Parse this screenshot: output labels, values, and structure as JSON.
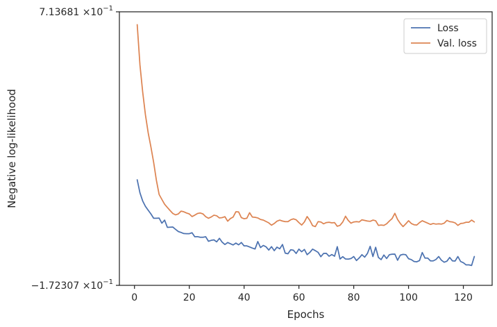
{
  "chart_data": {
    "type": "line",
    "xlabel": "Epochs",
    "ylabel": "Negative log-likelihood",
    "xlim": [
      -5.5,
      130.5
    ],
    "ylim": [
      -0.172307,
      0.713681
    ],
    "x_ticks": [
      0,
      20,
      40,
      60,
      80,
      100,
      120
    ],
    "x_tick_labels": [
      "0",
      "20",
      "40",
      "60",
      "80",
      "100",
      "120"
    ],
    "y_ticks": [
      -0.172307,
      0.713681
    ],
    "y_tick_labels": [
      {
        "prefix": "−1.72307",
        "exp": "−1"
      },
      {
        "prefix": "7.13681",
        "exp": "−1"
      }
    ],
    "y_tick_times": "×10",
    "legend_position": "top-right",
    "grid": false,
    "series": [
      {
        "name": "Loss",
        "color": "#4c72b0",
        "x": [
          1,
          2,
          3,
          4,
          5,
          6,
          7,
          8,
          9,
          10,
          11,
          12,
          13,
          14,
          15,
          16,
          17,
          18,
          19,
          20,
          21,
          22,
          23,
          24,
          25,
          26,
          27,
          28,
          29,
          30,
          31,
          32,
          33,
          34,
          35,
          36,
          37,
          38,
          39,
          40,
          41,
          42,
          43,
          44,
          45,
          46,
          47,
          48,
          49,
          50,
          51,
          52,
          53,
          54,
          55,
          56,
          57,
          58,
          59,
          60,
          61,
          62,
          63,
          64,
          65,
          66,
          67,
          68,
          69,
          70,
          71,
          72,
          73,
          74,
          75,
          76,
          77,
          78,
          79,
          80,
          81,
          82,
          83,
          84,
          85,
          86,
          87,
          88,
          89,
          90,
          91,
          92,
          93,
          94,
          95,
          96,
          97,
          98,
          99,
          100,
          101,
          102,
          103,
          104,
          105,
          106,
          107,
          108,
          109,
          110,
          111,
          112,
          113,
          114,
          115,
          116,
          117,
          118,
          119,
          120,
          121,
          122,
          123,
          124
        ],
        "values": [
          0.1695,
          0.1275,
          0.101,
          0.0835,
          0.071,
          0.059,
          0.045,
          0.045,
          0.0455,
          0.029,
          0.039,
          0.0155,
          0.016,
          0.0165,
          0.009,
          0.002,
          -0.001,
          -0.0045,
          -0.005,
          -0.005,
          -0.002,
          -0.015,
          -0.0145,
          -0.0165,
          -0.0165,
          -0.015,
          -0.0295,
          -0.0265,
          -0.025,
          -0.0315,
          -0.02,
          -0.0325,
          -0.04,
          -0.0335,
          -0.0375,
          -0.0415,
          -0.0355,
          -0.041,
          -0.0335,
          -0.0445,
          -0.0445,
          -0.048,
          -0.0515,
          -0.0545,
          -0.0305,
          -0.05,
          -0.043,
          -0.0475,
          -0.058,
          -0.047,
          -0.06,
          -0.0485,
          -0.054,
          -0.04,
          -0.068,
          -0.07,
          -0.057,
          -0.0585,
          -0.069,
          -0.055,
          -0.0635,
          -0.056,
          -0.073,
          -0.0655,
          -0.055,
          -0.06,
          -0.0655,
          -0.0795,
          -0.069,
          -0.0685,
          -0.078,
          -0.0725,
          -0.078,
          -0.047,
          -0.087,
          -0.0795,
          -0.087,
          -0.0875,
          -0.0855,
          -0.079,
          -0.092,
          -0.0835,
          -0.073,
          -0.081,
          -0.069,
          -0.046,
          -0.079,
          -0.049,
          -0.082,
          -0.089,
          -0.074,
          -0.0855,
          -0.073,
          -0.0715,
          -0.071,
          -0.091,
          -0.0745,
          -0.072,
          -0.073,
          -0.086,
          -0.089,
          -0.095,
          -0.096,
          -0.092,
          -0.066,
          -0.084,
          -0.084,
          -0.093,
          -0.093,
          -0.0885,
          -0.079,
          -0.091,
          -0.0975,
          -0.094,
          -0.082,
          -0.093,
          -0.0935,
          -0.079,
          -0.095,
          -0.099,
          -0.106,
          -0.106,
          -0.108,
          -0.079
        ]
      },
      {
        "name": "Val. loss",
        "color": "#dd8452",
        "x": [
          1,
          2,
          3,
          4,
          5,
          6,
          7,
          8,
          9,
          10,
          11,
          12,
          13,
          14,
          15,
          16,
          17,
          18,
          19,
          20,
          21,
          22,
          23,
          24,
          25,
          26,
          27,
          28,
          29,
          30,
          31,
          32,
          33,
          34,
          35,
          36,
          37,
          38,
          39,
          40,
          41,
          42,
          43,
          44,
          45,
          46,
          47,
          48,
          49,
          50,
          51,
          52,
          53,
          54,
          55,
          56,
          57,
          58,
          59,
          60,
          61,
          62,
          63,
          64,
          65,
          66,
          67,
          68,
          69,
          70,
          71,
          72,
          73,
          74,
          75,
          76,
          77,
          78,
          79,
          80,
          81,
          82,
          83,
          84,
          85,
          86,
          87,
          88,
          89,
          90,
          91,
          92,
          93,
          94,
          95,
          96,
          97,
          98,
          99,
          100,
          101,
          102,
          103,
          104,
          105,
          106,
          107,
          108,
          109,
          110,
          111,
          112,
          113,
          114,
          115,
          116,
          117,
          118,
          119,
          120,
          121,
          122,
          123,
          124
        ],
        "values": [
          0.672,
          0.542,
          0.454,
          0.38,
          0.322,
          0.276,
          0.226,
          0.168,
          0.122,
          0.106,
          0.0905,
          0.08,
          0.07,
          0.0605,
          0.056,
          0.059,
          0.068,
          0.066,
          0.062,
          0.059,
          0.0505,
          0.055,
          0.0605,
          0.062,
          0.059,
          0.05,
          0.045,
          0.049,
          0.055,
          0.053,
          0.046,
          0.047,
          0.05,
          0.0355,
          0.044,
          0.049,
          0.066,
          0.0655,
          0.047,
          0.0435,
          0.045,
          0.063,
          0.049,
          0.048,
          0.046,
          0.041,
          0.039,
          0.0345,
          0.03,
          0.0225,
          0.028,
          0.0355,
          0.039,
          0.036,
          0.034,
          0.034,
          0.04,
          0.043,
          0.04,
          0.031,
          0.023,
          0.033,
          0.0505,
          0.038,
          0.021,
          0.018,
          0.034,
          0.033,
          0.027,
          0.031,
          0.032,
          0.03,
          0.031,
          0.019,
          0.022,
          0.033,
          0.0515,
          0.038,
          0.029,
          0.033,
          0.034,
          0.033,
          0.04,
          0.038,
          0.036,
          0.035,
          0.039,
          0.037,
          0.022,
          0.023,
          0.022,
          0.027,
          0.036,
          0.044,
          0.061,
          0.041,
          0.028,
          0.018,
          0.027,
          0.037,
          0.028,
          0.024,
          0.023,
          0.031,
          0.037,
          0.033,
          0.029,
          0.025,
          0.028,
          0.026,
          0.027,
          0.026,
          0.029,
          0.038,
          0.034,
          0.033,
          0.03,
          0.022,
          0.028,
          0.029,
          0.032,
          0.032,
          0.039,
          0.033
        ]
      }
    ]
  }
}
